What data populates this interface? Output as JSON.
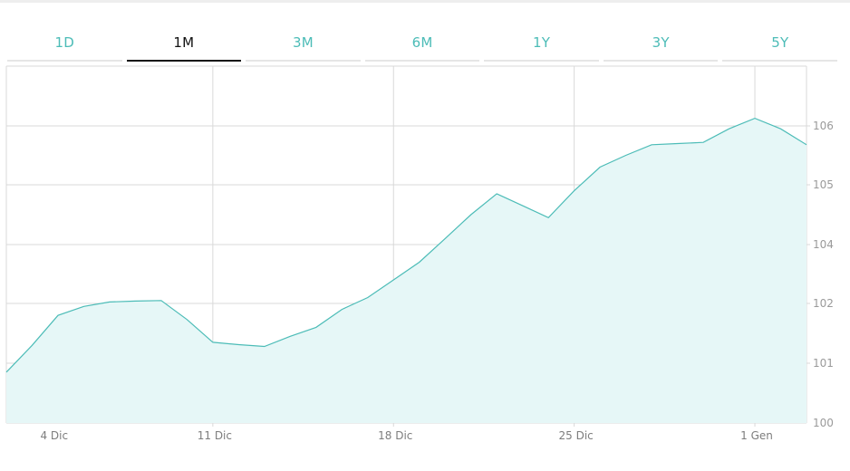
{
  "tabs": [
    {
      "label": "1D",
      "active": false
    },
    {
      "label": "1M",
      "active": true
    },
    {
      "label": "3M",
      "active": false
    },
    {
      "label": "6M",
      "active": false
    },
    {
      "label": "1Y",
      "active": false
    },
    {
      "label": "3Y",
      "active": false
    },
    {
      "label": "5Y",
      "active": false
    }
  ],
  "colors": {
    "accent": "#4cbcb7",
    "area_fill": "#e6f7f7",
    "grid": "#d9d9d9",
    "active_tab": "#111111"
  },
  "chart_data": {
    "type": "area",
    "x_tick_labels": [
      "4 Dic",
      "11 Dic",
      "18 Dic",
      "25 Dic",
      "1 Gen"
    ],
    "y_tick_labels": [
      "100",
      "101",
      "102",
      "104",
      "105",
      "106"
    ],
    "x": [
      "3 Dic",
      "4 Dic",
      "5 Dic",
      "6 Dic",
      "7 Dic",
      "8 Dic",
      "9 Dic",
      "10 Dic",
      "11 Dic",
      "12 Dic",
      "13 Dic",
      "14 Dic",
      "15 Dic",
      "16 Dic",
      "17 Dic",
      "18 Dic",
      "19 Dic",
      "20 Dic",
      "21 Dic",
      "22 Dic",
      "23 Dic",
      "24 Dic",
      "25 Dic",
      "26 Dic",
      "27 Dic",
      "28 Dic",
      "29 Dic",
      "30 Dic",
      "31 Dic",
      "1 Gen",
      "2 Gen",
      "3 Gen"
    ],
    "series": [
      {
        "values": [
          100.85,
          101.3,
          101.8,
          101.95,
          102.05,
          102.08,
          102.1,
          101.73,
          101.35,
          101.31,
          101.28,
          101.45,
          101.6,
          101.9,
          102.2,
          102.8,
          103.4,
          104.1,
          104.5,
          104.85,
          104.65,
          104.45,
          104.9,
          105.3,
          105.5,
          105.68,
          105.7,
          105.72,
          105.95,
          106.13,
          105.95,
          105.68
        ]
      }
    ],
    "ylim": [
      100,
      107
    ],
    "grid": true,
    "legend": "none"
  }
}
